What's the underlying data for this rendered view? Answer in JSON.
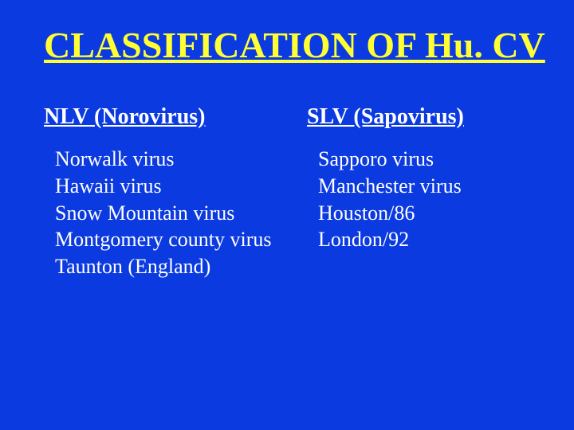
{
  "colors": {
    "background": "#0b3ae0",
    "title": "#ffff33",
    "text": "#ffffff"
  },
  "title": "CLASSIFICATION OF Hu. CV",
  "left": {
    "heading": "NLV (Norovirus)",
    "items": [
      "Norwalk virus",
      "Hawaii virus",
      "Snow Mountain virus",
      "Montgomery county virus",
      "Taunton (England)"
    ]
  },
  "right": {
    "heading": "SLV (Sapovirus)",
    "items": [
      "Sapporo virus",
      "Manchester virus",
      "Houston/86",
      "London/92"
    ]
  }
}
